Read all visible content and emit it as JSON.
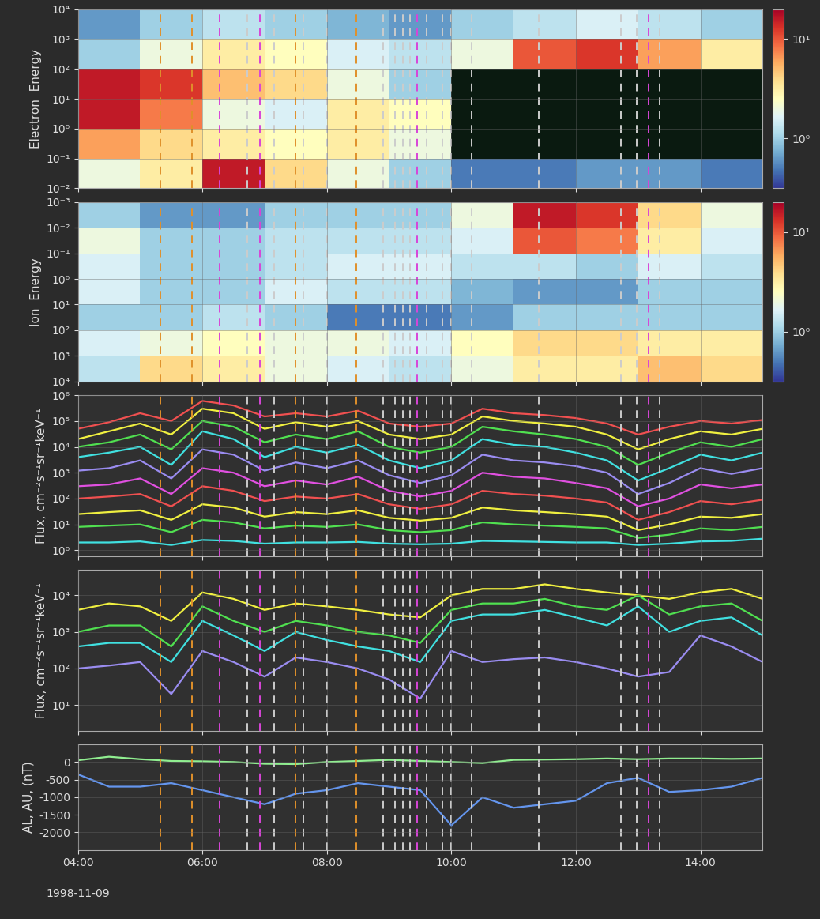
{
  "shared_x": {
    "x": [
      4.0,
      4.5,
      5.0,
      5.5,
      6.0,
      6.5,
      7.0,
      7.5,
      8.0,
      8.5,
      9.0,
      9.5,
      10.0,
      10.5,
      11.0,
      11.5,
      12.0,
      12.5,
      13.0,
      13.5,
      14.0,
      14.5,
      15.0
    ],
    "xlim": [
      4,
      15
    ],
    "xticks": [
      {
        "value": 4,
        "label": "04:00"
      },
      {
        "value": 6,
        "label": "06:00"
      },
      {
        "value": 8,
        "label": "08:00"
      },
      {
        "value": 10,
        "label": "10:00"
      },
      {
        "value": 12,
        "label": "12:00"
      },
      {
        "value": 14,
        "label": "14:00"
      }
    ],
    "date_label": "1998-11-09",
    "vlines": [
      {
        "x": 5.33,
        "color": "#e0902a"
      },
      {
        "x": 5.83,
        "color": "#e0902a"
      },
      {
        "x": 7.5,
        "color": "#e0902a"
      },
      {
        "x": 8.47,
        "color": "#e0902a"
      },
      {
        "x": 6.28,
        "color": "#d845d8"
      },
      {
        "x": 6.93,
        "color": "#d845d8"
      },
      {
        "x": 9.45,
        "color": "#d845d8"
      },
      {
        "x": 13.17,
        "color": "#d845d8"
      },
      {
        "x": 6.72,
        "color": "#cccccc"
      },
      {
        "x": 7.15,
        "color": "#cccccc"
      },
      {
        "x": 7.62,
        "color": "#cccccc"
      },
      {
        "x": 8.0,
        "color": "#cccccc"
      },
      {
        "x": 8.9,
        "color": "#cccccc"
      },
      {
        "x": 9.1,
        "color": "#cccccc"
      },
      {
        "x": 9.22,
        "color": "#cccccc"
      },
      {
        "x": 9.33,
        "color": "#cccccc"
      },
      {
        "x": 9.6,
        "color": "#cccccc"
      },
      {
        "x": 9.85,
        "color": "#cccccc"
      },
      {
        "x": 10.0,
        "color": "#cccccc"
      },
      {
        "x": 10.33,
        "color": "#cccccc"
      },
      {
        "x": 11.4,
        "color": "#cccccc"
      },
      {
        "x": 12.72,
        "color": "#cccccc"
      },
      {
        "x": 12.98,
        "color": "#cccccc"
      },
      {
        "x": 13.35,
        "color": "#cccccc"
      }
    ]
  },
  "chart_data": [
    {
      "type": "heatmap",
      "y_label": "Electron  Energy",
      "log": "y",
      "grid": true,
      "time_edges": [
        4,
        5,
        6,
        7,
        8,
        9,
        10,
        11,
        12,
        13,
        14,
        15
      ],
      "energy_edges": [
        0.01,
        0.1,
        1,
        10,
        100,
        1000,
        10000
      ],
      "ylim": [
        0.01,
        10000
      ],
      "yticks": [
        {
          "value": 0.01,
          "label": "10⁻²"
        },
        {
          "value": 0.1,
          "label": "10⁻¹"
        },
        {
          "value": 1,
          "label": "10⁰"
        },
        {
          "value": 10,
          "label": "10¹"
        },
        {
          "value": 100,
          "label": "10²"
        },
        {
          "value": 1000,
          "label": "10³"
        },
        {
          "value": 10000,
          "label": "10⁴"
        }
      ],
      "cells": [
        [
          0.3,
          0.5,
          1.2,
          0.6,
          0.3,
          0.0,
          -0.3,
          -0.3,
          -0.2,
          -0.2,
          -0.3
        ],
        [
          0.8,
          0.6,
          0.5,
          0.4,
          0.5,
          0.3,
          null,
          null,
          null,
          null,
          null
        ],
        [
          1.2,
          0.9,
          0.3,
          0.2,
          0.5,
          0.4,
          null,
          null,
          null,
          null,
          null
        ],
        [
          1.2,
          1.1,
          0.7,
          0.6,
          0.3,
          0.0,
          null,
          null,
          null,
          null,
          null
        ],
        [
          0.0,
          0.3,
          0.5,
          0.4,
          0.2,
          0.1,
          0.3,
          1.0,
          1.1,
          0.8,
          0.5
        ],
        [
          -0.2,
          0.0,
          0.1,
          0.0,
          -0.1,
          -0.2,
          0.0,
          0.1,
          0.2,
          0.1,
          0.0
        ]
      ],
      "colorbar": {
        "lim": [
          -0.5,
          1.3
        ],
        "ticks": [
          {
            "value": 0,
            "label": "10⁰"
          },
          {
            "value": 1,
            "label": "10¹"
          }
        ]
      }
    },
    {
      "type": "heatmap",
      "y_label": "Ion  Energy",
      "log": "y",
      "grid": true,
      "time_edges": [
        4,
        5,
        6,
        7,
        8,
        9,
        10,
        11,
        12,
        13,
        14,
        15
      ],
      "energy_edges": [
        0.001,
        0.01,
        0.1,
        1,
        10,
        100,
        1000,
        10000
      ],
      "ylim": [
        10000,
        0.001
      ],
      "yticks": [
        {
          "value": 0.001,
          "label": "10⁻³"
        },
        {
          "value": 0.01,
          "label": "10⁻²"
        },
        {
          "value": 0.1,
          "label": "10⁻¹"
        },
        {
          "value": 1,
          "label": "10⁰"
        },
        {
          "value": 10,
          "label": "10¹"
        },
        {
          "value": 100,
          "label": "10²"
        },
        {
          "value": 1000,
          "label": "10³"
        },
        {
          "value": 10000,
          "label": "10⁴"
        }
      ],
      "cells": [
        [
          0.0,
          -0.2,
          -0.2,
          0.0,
          0.0,
          0.0,
          0.3,
          1.2,
          1.1,
          0.6,
          0.3
        ],
        [
          0.3,
          0.0,
          0.0,
          0.1,
          0.1,
          0.1,
          0.2,
          1.0,
          0.9,
          0.5,
          0.2
        ],
        [
          0.2,
          0.0,
          0.0,
          0.1,
          0.2,
          0.2,
          0.1,
          0.1,
          0.0,
          0.2,
          0.1
        ],
        [
          0.2,
          0.0,
          0.0,
          0.2,
          0.1,
          0.1,
          -0.1,
          -0.2,
          -0.2,
          0.0,
          0.0
        ],
        [
          0.0,
          0.0,
          0.1,
          0.0,
          -0.3,
          -0.3,
          -0.2,
          0.0,
          0.0,
          0.0,
          0.0
        ],
        [
          0.2,
          0.3,
          0.4,
          0.3,
          0.3,
          0.2,
          0.4,
          0.6,
          0.6,
          0.5,
          0.5
        ],
        [
          0.1,
          0.6,
          0.5,
          0.3,
          0.2,
          0.1,
          0.3,
          0.5,
          0.5,
          0.7,
          0.6
        ]
      ],
      "colorbar": {
        "lim": [
          -0.5,
          1.3
        ],
        "ticks": [
          {
            "value": 0,
            "label": "10⁰"
          },
          {
            "value": 1,
            "label": "10¹"
          }
        ]
      }
    },
    {
      "type": "line",
      "y_label": "Flux, cm⁻²s⁻¹sr⁻¹keV⁻¹",
      "log": "y",
      "grid": true,
      "ylim": [
        0.6,
        1000000
      ],
      "yticks": [
        {
          "value": 1,
          "label": "10⁰"
        },
        {
          "value": 10,
          "label": "10¹"
        },
        {
          "value": 100,
          "label": "10²"
        },
        {
          "value": 1000,
          "label": "10³"
        },
        {
          "value": 10000,
          "label": "10⁴"
        },
        {
          "value": 100000,
          "label": "10⁵"
        },
        {
          "value": 1000000,
          "label": "10⁶"
        }
      ],
      "series": [
        {
          "color": "#f05050",
          "values": [
            50000,
            90000,
            200000,
            100000,
            600000,
            400000,
            150000,
            200000,
            150000,
            250000,
            80000,
            60000,
            80000,
            300000,
            200000,
            170000,
            130000,
            80000,
            30000,
            60000,
            100000,
            80000,
            110000
          ]
        },
        {
          "color": "#f0f040",
          "values": [
            20000,
            40000,
            80000,
            30000,
            300000,
            200000,
            50000,
            90000,
            60000,
            100000,
            30000,
            20000,
            30000,
            150000,
            100000,
            80000,
            60000,
            30000,
            8000,
            20000,
            40000,
            30000,
            50000
          ]
        },
        {
          "color": "#50e050",
          "values": [
            10000,
            15000,
            30000,
            8000,
            100000,
            60000,
            15000,
            30000,
            20000,
            40000,
            10000,
            6000,
            10000,
            60000,
            40000,
            30000,
            20000,
            10000,
            2000,
            6000,
            15000,
            10000,
            20000
          ]
        },
        {
          "color": "#40e0e0",
          "values": [
            4000,
            6000,
            10000,
            2000,
            40000,
            20000,
            4000,
            10000,
            6000,
            12000,
            3000,
            1500,
            3000,
            20000,
            12000,
            10000,
            6000,
            3000,
            500,
            1500,
            5000,
            3000,
            6000
          ]
        },
        {
          "color": "#9a8cf0",
          "values": [
            1200,
            1500,
            3000,
            600,
            8000,
            5000,
            1200,
            2500,
            1500,
            3000,
            800,
            400,
            800,
            5000,
            3000,
            2500,
            1800,
            1000,
            150,
            400,
            1500,
            900,
            1500
          ]
        },
        {
          "color": "#e050e0",
          "values": [
            300,
            350,
            600,
            150,
            1500,
            1000,
            300,
            500,
            350,
            700,
            200,
            120,
            200,
            1000,
            700,
            600,
            400,
            250,
            50,
            100,
            350,
            250,
            350
          ]
        },
        {
          "color": "#f05050",
          "values": [
            100,
            120,
            150,
            50,
            300,
            200,
            80,
            120,
            100,
            150,
            60,
            40,
            60,
            200,
            150,
            130,
            100,
            70,
            15,
            30,
            80,
            60,
            90
          ]
        },
        {
          "color": "#f0f040",
          "values": [
            25,
            30,
            35,
            15,
            60,
            45,
            20,
            30,
            25,
            35,
            18,
            14,
            18,
            45,
            35,
            30,
            25,
            20,
            6,
            10,
            20,
            18,
            25
          ]
        },
        {
          "color": "#50e050",
          "values": [
            8,
            9,
            10,
            5,
            15,
            12,
            7,
            9,
            8,
            10,
            6,
            5,
            6,
            12,
            10,
            9,
            8,
            7,
            3,
            4,
            7,
            6,
            8
          ]
        },
        {
          "color": "#40e0e0",
          "values": [
            2,
            2,
            2.2,
            1.6,
            2.5,
            2.3,
            1.8,
            2,
            2,
            2.1,
            1.8,
            1.7,
            1.8,
            2.3,
            2.2,
            2.1,
            2,
            2,
            1.6,
            1.8,
            2.2,
            2.3,
            2.8
          ]
        }
      ]
    },
    {
      "type": "line",
      "y_label": "Flux, cm⁻²s⁻¹sr⁻¹keV⁻¹",
      "log": "y",
      "grid": true,
      "ylim": [
        2,
        50000
      ],
      "yticks": [
        {
          "value": 10,
          "label": "10¹"
        },
        {
          "value": 100,
          "label": "10²"
        },
        {
          "value": 1000,
          "label": "10³"
        },
        {
          "value": 10000,
          "label": "10⁴"
        }
      ],
      "series": [
        {
          "color": "#f0f040",
          "values": [
            4000,
            6000,
            5000,
            2000,
            12000,
            8000,
            4000,
            6000,
            5000,
            4000,
            3000,
            2500,
            10000,
            15000,
            15000,
            20000,
            15000,
            12000,
            10000,
            8000,
            12000,
            15000,
            8000
          ]
        },
        {
          "color": "#50e050",
          "values": [
            1000,
            1500,
            1500,
            400,
            5000,
            2000,
            1000,
            2000,
            1500,
            1000,
            800,
            500,
            4000,
            6000,
            6000,
            8000,
            5000,
            4000,
            10000,
            3000,
            5000,
            6000,
            2000
          ]
        },
        {
          "color": "#40e0e0",
          "values": [
            400,
            500,
            500,
            150,
            2000,
            800,
            300,
            1000,
            600,
            400,
            300,
            150,
            2000,
            3000,
            3000,
            4000,
            2500,
            1500,
            5000,
            1000,
            2000,
            2500,
            800
          ]
        },
        {
          "color": "#9a8cf0",
          "values": [
            100,
            120,
            150,
            20,
            300,
            150,
            60,
            200,
            150,
            100,
            50,
            15,
            300,
            150,
            180,
            200,
            150,
            100,
            60,
            80,
            800,
            400,
            150
          ]
        }
      ]
    },
    {
      "type": "line",
      "y_label": "AL, AU, (nT)",
      "grid": true,
      "ylim": [
        -2500,
        500
      ],
      "yticks": [
        -2000,
        -1500,
        -1000,
        -500,
        0
      ],
      "series": [
        {
          "color": "#90ee90",
          "values": [
            50,
            150,
            80,
            30,
            20,
            0,
            -50,
            -60,
            0,
            30,
            60,
            30,
            0,
            -30,
            60,
            70,
            80,
            100,
            80,
            100,
            100,
            90,
            100
          ]
        },
        {
          "color": "#6495ed",
          "values": [
            -350,
            -700,
            -700,
            -600,
            -800,
            -1000,
            -1200,
            -900,
            -800,
            -600,
            -700,
            -800,
            -1800,
            -1000,
            -1300,
            -1200,
            -1100,
            -600,
            -450,
            -850,
            -800,
            -700,
            -450
          ]
        }
      ]
    }
  ]
}
